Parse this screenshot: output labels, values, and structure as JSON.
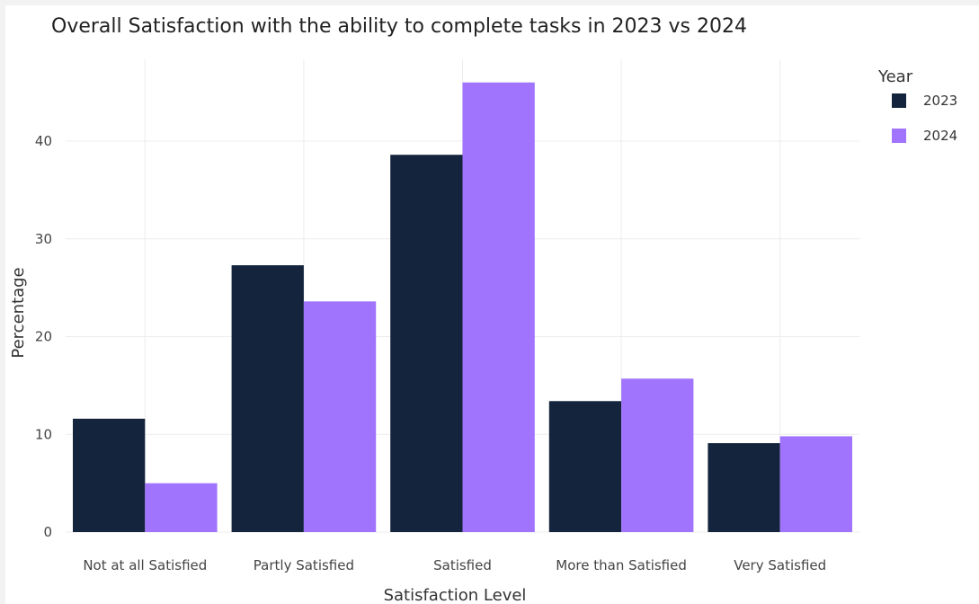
{
  "chart_data": {
    "type": "bar",
    "title": "Overall Satisfaction with the ability to complete tasks in 2023 vs 2024",
    "xlabel": "Satisfaction Level",
    "ylabel": "Percentage",
    "categories": [
      "Not at all Satisfied",
      "Partly Satisfied",
      "Satisfied",
      "More than Satisfied",
      "Very Satisfied"
    ],
    "series": [
      {
        "name": "2023",
        "color": "#14243c",
        "values": [
          11.6,
          27.3,
          38.6,
          13.4,
          9.1
        ]
      },
      {
        "name": "2024",
        "color": "#a074fc",
        "values": [
          5.0,
          23.6,
          46.0,
          15.7,
          9.8
        ]
      }
    ],
    "yticks": [
      0,
      10,
      20,
      30,
      40
    ],
    "ylim": [
      0,
      48
    ],
    "grid": true,
    "legend": {
      "title": "Year",
      "position": "right"
    }
  }
}
